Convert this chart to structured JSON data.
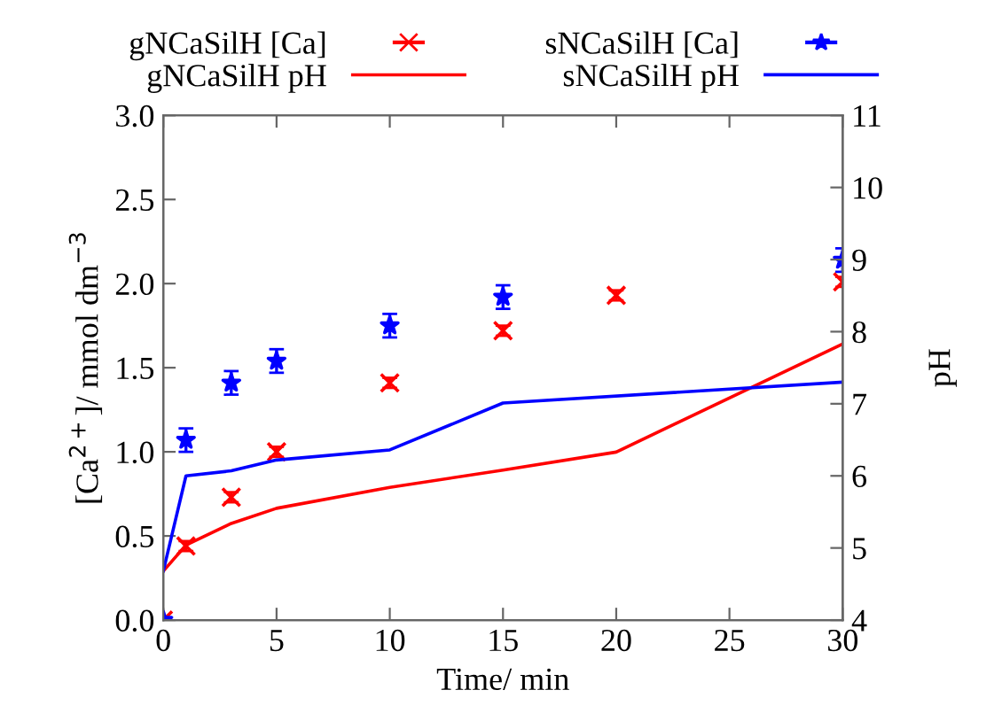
{
  "chart_data": {
    "type": "scatter",
    "xlabel": "Time/ min",
    "ylabel": "[Ca$^{2+}$]/ mmol dm$^{−3}$",
    "y2label": "pH",
    "xlim": [
      0,
      30
    ],
    "xticks": [
      0,
      5,
      10,
      15,
      20,
      25,
      30
    ],
    "ylim": [
      0,
      3.0
    ],
    "yticks": [
      {
        "value": 0,
        "label": "0.0"
      },
      {
        "value": 0.5,
        "label": "0.5"
      },
      {
        "value": 1.0,
        "label": "1.0"
      },
      {
        "value": 1.5,
        "label": "1.5"
      },
      {
        "value": 2.0,
        "label": "2.0"
      },
      {
        "value": 2.5,
        "label": "2.5"
      },
      {
        "value": 3.0,
        "label": "3.0"
      }
    ],
    "y2lim": [
      4,
      11
    ],
    "y2ticks": [
      4,
      5,
      6,
      7,
      8,
      9,
      10,
      11
    ],
    "legend": "top",
    "grid": false,
    "series": [
      {
        "name": "gNCaSilH [Ca]",
        "marker": "cross",
        "color": "#ff0000",
        "x": [
          0,
          1,
          3,
          5,
          10,
          15,
          20,
          30
        ],
        "values": [
          0,
          0.44,
          0.73,
          1.0,
          1.41,
          1.72,
          1.93,
          2.01
        ],
        "errors": [
          null,
          0.03,
          0.03,
          0.03,
          0.03,
          0.03,
          0.03,
          0.03
        ]
      },
      {
        "name": "gNCaSilH pH",
        "type": "line",
        "axis": "y2",
        "color": "#ff0000",
        "x": [
          0,
          1,
          3,
          5,
          10,
          15,
          20,
          30
        ],
        "values": [
          4.68,
          5.04,
          5.34,
          5.55,
          5.84,
          6.08,
          6.33,
          7.83
        ]
      },
      {
        "name": "sNCaSilH [Ca]",
        "marker": "star",
        "color": "#0000ff",
        "x": [
          0,
          1,
          3,
          5,
          10,
          15,
          30
        ],
        "values": [
          0,
          1.07,
          1.41,
          1.54,
          1.75,
          1.92,
          2.14
        ],
        "errors": [
          null,
          0.07,
          0.07,
          0.07,
          0.07,
          0.07,
          0.07
        ]
      },
      {
        "name": "sNCaSilH pH",
        "type": "line",
        "axis": "y2",
        "color": "#0000ff",
        "x": [
          0,
          1,
          3,
          5,
          10,
          15,
          30
        ],
        "values": [
          4.68,
          6.0,
          6.07,
          6.22,
          6.36,
          7.01,
          7.3
        ]
      }
    ]
  }
}
